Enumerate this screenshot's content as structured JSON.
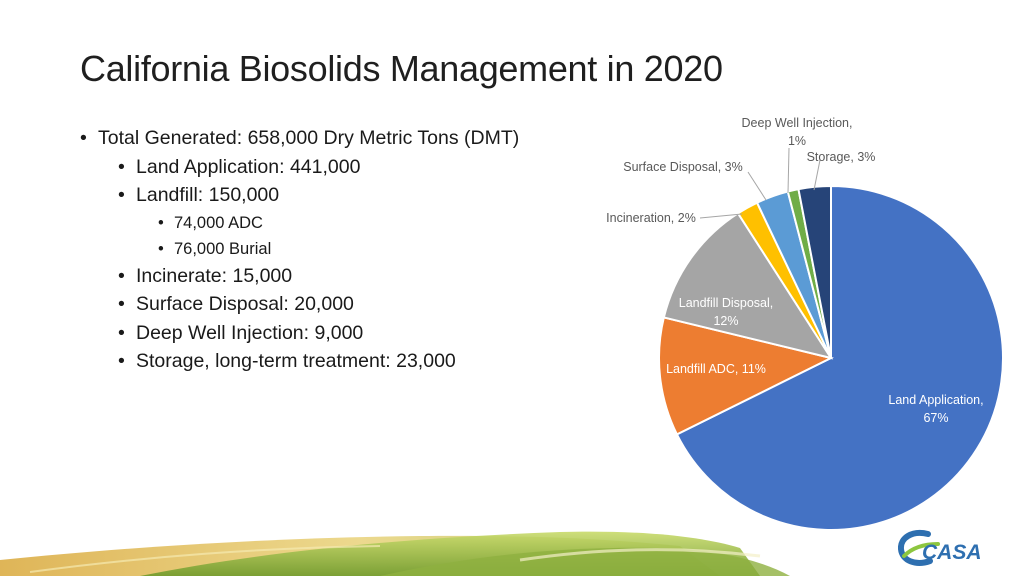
{
  "slide": {
    "title": "California Biosolids Management in 2020",
    "bullets": {
      "total": "Total Generated:  658,000 Dry Metric Tons (DMT)",
      "land_application": "Land Application: 441,000",
      "landfill": "Landfill: 150,000",
      "adc": "74,000 ADC",
      "burial": "76,000 Burial",
      "incinerate": "Incinerate: 15,000",
      "surface_disposal": "Surface Disposal: 20,000",
      "deep_well": "Deep Well Injection: 9,000",
      "storage": "Storage, long-term treatment: 23,000"
    },
    "logo_text": "CASA"
  },
  "chart_data": {
    "type": "pie",
    "start_angle_deg": 0,
    "direction": "clockwise",
    "slices": [
      {
        "name": "Land Application",
        "value": 67,
        "label": [
          "Land Application,",
          "67%"
        ],
        "color": "#4472C4"
      },
      {
        "name": "Landfill ADC",
        "value": 11,
        "label": [
          "Landfill ADC, 11%"
        ],
        "color": "#ED7D31"
      },
      {
        "name": "Landfill Disposal",
        "value": 12,
        "label": [
          "Landfill Disposal,",
          "12%"
        ],
        "color": "#A5A5A5"
      },
      {
        "name": "Incineration",
        "value": 2,
        "label": [
          "Incineration, 2%"
        ],
        "color": "#FFC000"
      },
      {
        "name": "Surface Disposal",
        "value": 3,
        "label": [
          "Surface Disposal, 3%"
        ],
        "color": "#5B9BD5"
      },
      {
        "name": "Deep Well Injection",
        "value": 1,
        "label": [
          "Deep Well Injection,",
          "1%"
        ],
        "color": "#70AD47"
      },
      {
        "name": "Storage",
        "value": 3,
        "label": [
          "Storage, 3%"
        ],
        "color": "#264478"
      }
    ]
  },
  "colors": {
    "leader_line": "#a6a6a6",
    "logo_blue": "#2e6fb0",
    "logo_green": "#8dc63f"
  }
}
